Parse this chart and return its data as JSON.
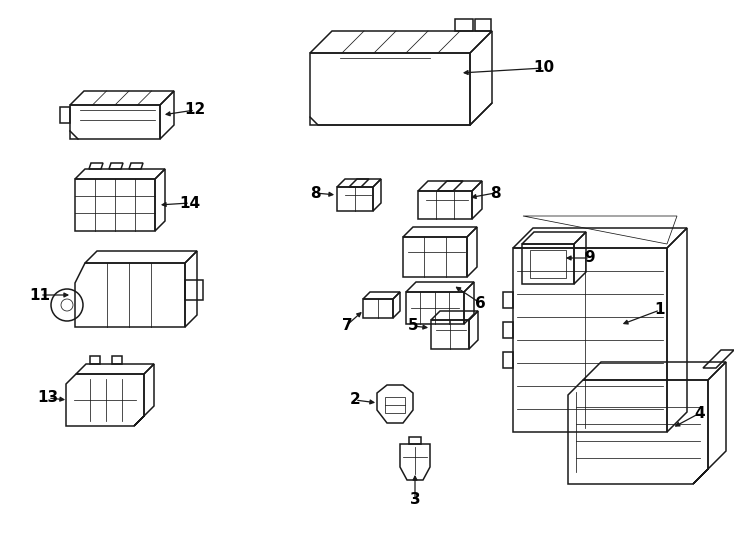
{
  "background_color": "#ffffff",
  "line_color": "#1a1a1a",
  "text_color": "#000000",
  "fig_width": 7.34,
  "fig_height": 5.4,
  "dpi": 100,
  "label_fontsize": 11,
  "lw_main": 1.1,
  "lw_detail": 0.55
}
